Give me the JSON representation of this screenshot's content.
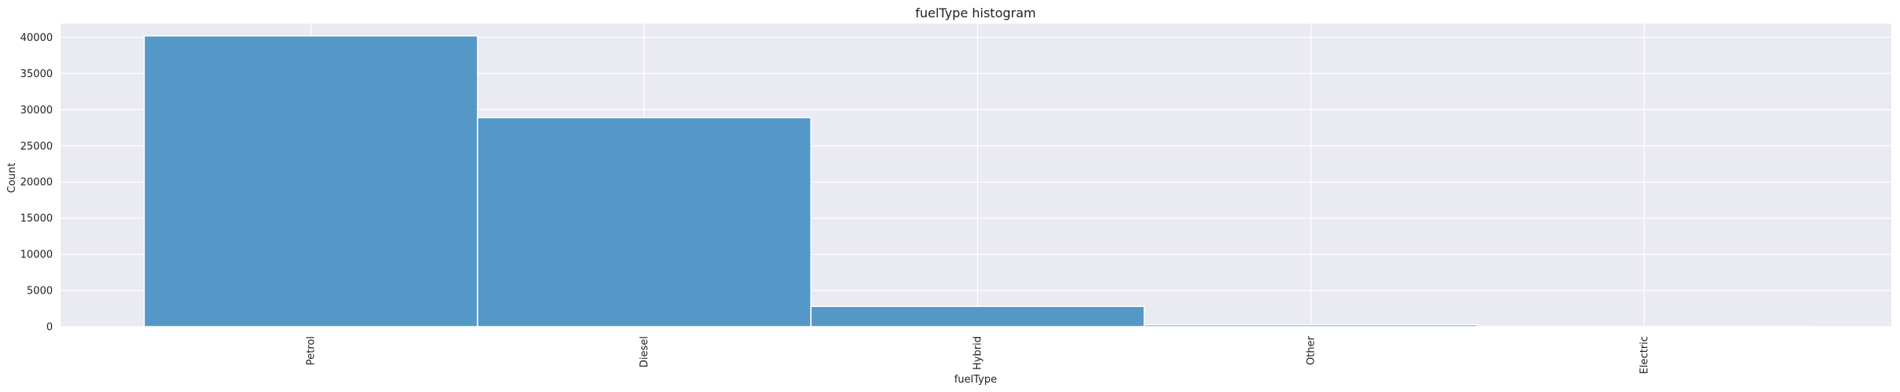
{
  "chart_data": {
    "type": "bar",
    "title": "fuelType histogram",
    "xlabel": "fuelType",
    "ylabel": "Count",
    "categories": [
      "Petrol",
      "Diesel",
      "Hybrid",
      "Other",
      "Electric"
    ],
    "values": [
      40200,
      28900,
      2800,
      250,
      6
    ],
    "ylim": [
      0,
      41900
    ],
    "yticks": [
      0,
      5000,
      10000,
      15000,
      20000,
      25000,
      30000,
      35000,
      40000
    ],
    "grid": true,
    "colors": {
      "bar": "#4c94c4",
      "bar_edge": "#ffffff",
      "plot_background": "#eaeaf2",
      "grid": "#ffffff"
    }
  }
}
